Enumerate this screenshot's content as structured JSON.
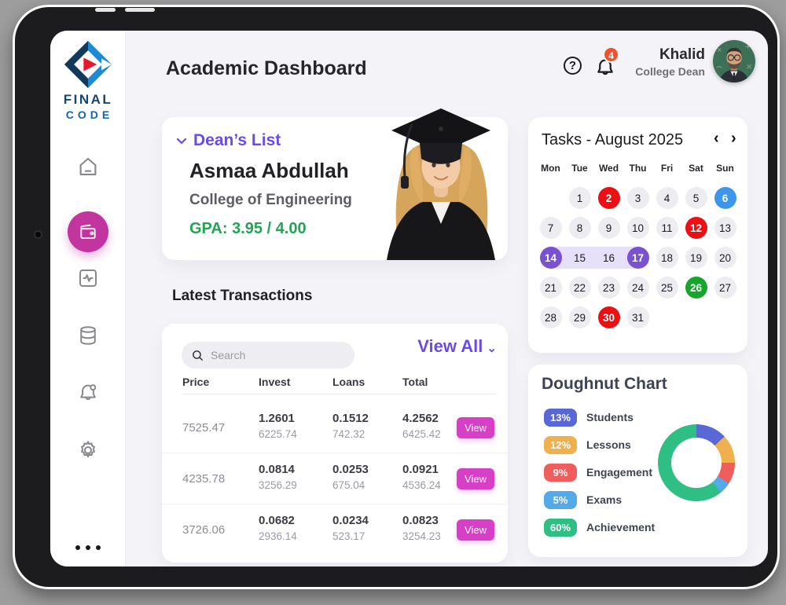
{
  "colors": {
    "accent": "#6a4be8",
    "pink_active": "#c2359f",
    "view_btn": "#d63fc6",
    "green": "#23a455",
    "badge_orange": "#f4502b",
    "cal_red": "#ec0f14",
    "cal_blue": "#3d96e9",
    "cal_purple": "#7a52cf",
    "cal_green": "#17a52e",
    "cal_range": "#e6e0f8"
  },
  "sidebar": {
    "logo_line1": "FINAL",
    "logo_line2": "CODE",
    "icons": [
      "home-icon",
      "wallet-icon (active)",
      "activity-icon",
      "database-icon",
      "bell-icon",
      "gear-icon",
      "more-dots"
    ]
  },
  "header": {
    "title": "Academic Dashboard",
    "help_icon": "?",
    "notification_count": "4",
    "user_name": "Khalid",
    "user_role": "College Dean"
  },
  "dean_card": {
    "label": "Dean’s List",
    "name": "Asmaa Abdullah",
    "college": "College of Engineering",
    "gpa": "GPA: 3.95 / 4.00"
  },
  "transactions": {
    "heading": "Latest Transactions",
    "search_placeholder": "Search",
    "view_all": "View All",
    "view_all_chevron": "⌄",
    "columns": [
      "Price",
      "Invest",
      "Loans",
      "Total"
    ],
    "rows": [
      {
        "price": "7525.47",
        "invest": "1.2601",
        "invest_sub": "6225.74",
        "loans": "0.1512",
        "loans_sub": "742.32",
        "total": "4.2562",
        "total_sub": "6425.42",
        "action": "View"
      },
      {
        "price": "4235.78",
        "invest": "0.0814",
        "invest_sub": "3256.29",
        "loans": "0.0253",
        "loans_sub": "675.04",
        "total": "0.0921",
        "total_sub": "4536.24",
        "action": "View"
      },
      {
        "price": "3726.06",
        "invest": "0.0682",
        "invest_sub": "2936.14",
        "loans": "0.0234",
        "loans_sub": "523.17",
        "total": "0.0823",
        "total_sub": "3254.23",
        "action": "View"
      }
    ]
  },
  "calendar": {
    "title": "Tasks - August 2025",
    "prev_icon": "‹",
    "next_icon": "›",
    "day_names": [
      "Mon",
      "Tue",
      "Wed",
      "Thu",
      "Fri",
      "Sat",
      "Sun"
    ],
    "leading_empty": 1,
    "days": [
      {
        "label": "1",
        "state": "default"
      },
      {
        "label": "2",
        "state": "red"
      },
      {
        "label": "3",
        "state": "default"
      },
      {
        "label": "4",
        "state": "default"
      },
      {
        "label": "5",
        "state": "default"
      },
      {
        "label": "6",
        "state": "blue"
      },
      {
        "label": "7",
        "state": "default"
      },
      {
        "label": "8",
        "state": "default"
      },
      {
        "label": "9",
        "state": "default"
      },
      {
        "label": "10",
        "state": "default"
      },
      {
        "label": "11",
        "state": "default"
      },
      {
        "label": "12",
        "state": "red"
      },
      {
        "label": "13",
        "state": "default"
      },
      {
        "label": "14",
        "state": "purple",
        "range": "start"
      },
      {
        "label": "15",
        "state": "mid",
        "range": "mid"
      },
      {
        "label": "16",
        "state": "mid",
        "range": "mid"
      },
      {
        "label": "17",
        "state": "purple",
        "range": "end"
      },
      {
        "label": "18",
        "state": "default"
      },
      {
        "label": "19",
        "state": "default"
      },
      {
        "label": "20",
        "state": "default"
      },
      {
        "label": "21",
        "state": "default"
      },
      {
        "label": "22",
        "state": "default"
      },
      {
        "label": "23",
        "state": "default"
      },
      {
        "label": "24",
        "state": "default"
      },
      {
        "label": "25",
        "state": "default"
      },
      {
        "label": "26",
        "state": "green"
      },
      {
        "label": "27",
        "state": "default"
      },
      {
        "label": "28",
        "state": "default"
      },
      {
        "label": "29",
        "state": "default"
      },
      {
        "label": "30",
        "state": "red"
      },
      {
        "label": "31",
        "state": "default"
      }
    ]
  },
  "chart_data": {
    "type": "pie",
    "variant": "doughnut",
    "title": "Doughnut Chart",
    "legend_position": "left",
    "start_angle_deg": 0,
    "direction": "clockwise",
    "series": [
      {
        "label": "Students",
        "value": 13,
        "color": "#5a68d6"
      },
      {
        "label": "Lessons",
        "value": 12,
        "color": "#f0b04e"
      },
      {
        "label": "Engagement",
        "value": 9,
        "color": "#ef5d5d"
      },
      {
        "label": "Exams",
        "value": 5,
        "color": "#54aae8"
      },
      {
        "label": "Achievement",
        "value": 60,
        "color": "#2fbe84"
      }
    ]
  }
}
